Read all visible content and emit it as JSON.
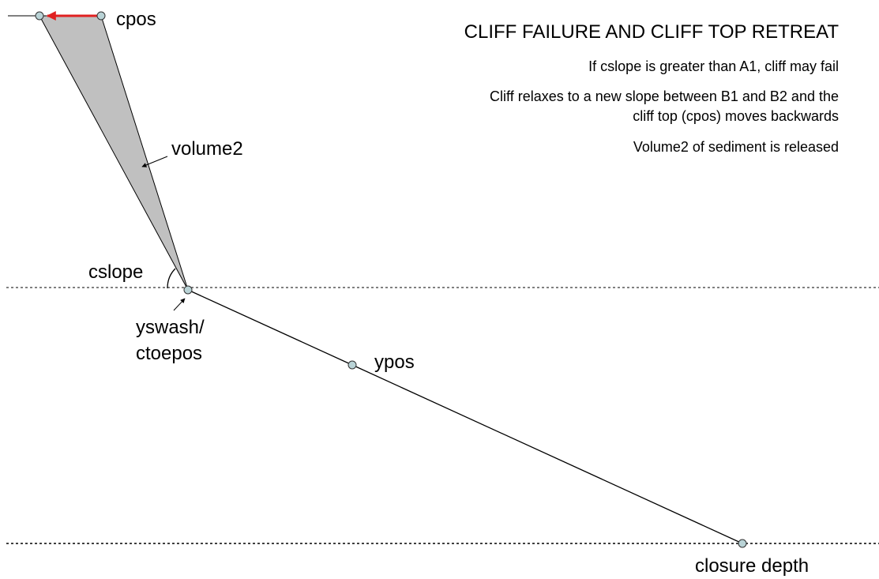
{
  "header": {
    "title": "CLIFF FAILURE AND CLIFF TOP RETREAT"
  },
  "notes": [
    {
      "lines": [
        "If cslope is greater than A1, cliff may fail"
      ]
    },
    {
      "lines": [
        "Cliff relaxes to a new slope between B1 and B2 and the",
        "cliff top (cpos) moves backwards"
      ]
    },
    {
      "lines": [
        "Volume2 of sediment is released"
      ]
    }
  ],
  "labels": {
    "cpos": "cpos",
    "volume2": "volume2",
    "cslope": "cslope",
    "yswash": [
      "yswash/",
      "ctoepos"
    ],
    "ypos": "ypos",
    "closure_depth": "closure depth"
  }
}
